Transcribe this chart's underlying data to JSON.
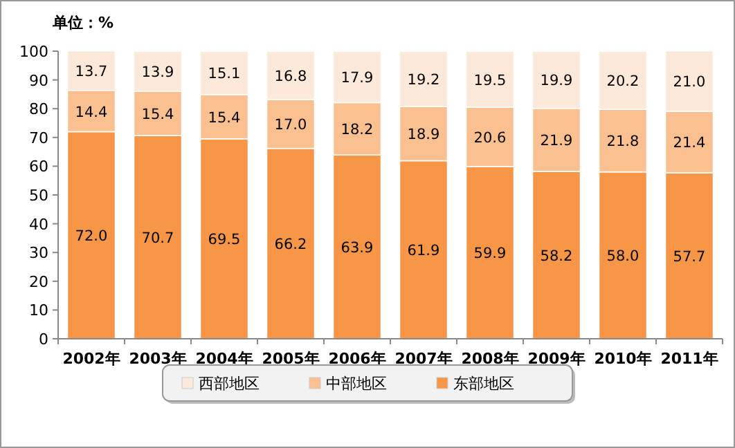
{
  "chart_data": {
    "type": "bar",
    "stacked": true,
    "ylabel": "单位：%",
    "categories": [
      "2002年",
      "2003年",
      "2004年",
      "2005年",
      "2006年",
      "2007年",
      "2008年",
      "2009年",
      "2010年",
      "2011年"
    ],
    "series": [
      {
        "name": "东部地区",
        "color": "#f79646",
        "values": [
          72.0,
          70.7,
          69.5,
          66.2,
          63.9,
          61.9,
          59.9,
          58.2,
          58.0,
          57.7
        ],
        "value_labels": [
          "72.0",
          "70.7",
          "69.5",
          "66.2",
          "63.9",
          "61.9",
          "59.9",
          "58.2",
          "58.0",
          "57.7"
        ]
      },
      {
        "name": "中部地区",
        "color": "#fac08f",
        "values": [
          14.4,
          15.4,
          15.4,
          17.0,
          18.2,
          18.9,
          20.6,
          21.9,
          21.8,
          21.4
        ],
        "value_labels": [
          "14.4",
          "15.4",
          "15.4",
          "17.0",
          "18.2",
          "18.9",
          "20.6",
          "21.9",
          "21.8",
          "21.4"
        ]
      },
      {
        "name": "西部地区",
        "color": "#fde9d9",
        "values": [
          13.7,
          13.9,
          15.1,
          16.8,
          17.9,
          19.2,
          19.5,
          19.9,
          20.2,
          21.0
        ],
        "value_labels": [
          "13.7",
          "13.9",
          "15.1",
          "16.8",
          "17.9",
          "19.2",
          "19.5",
          "19.9",
          "20.2",
          "21.0"
        ]
      }
    ],
    "ylim": [
      0,
      100
    ],
    "yticks": [
      0,
      10,
      20,
      30,
      40,
      50,
      60,
      70,
      80,
      90,
      100
    ],
    "legend": "bottom"
  }
}
